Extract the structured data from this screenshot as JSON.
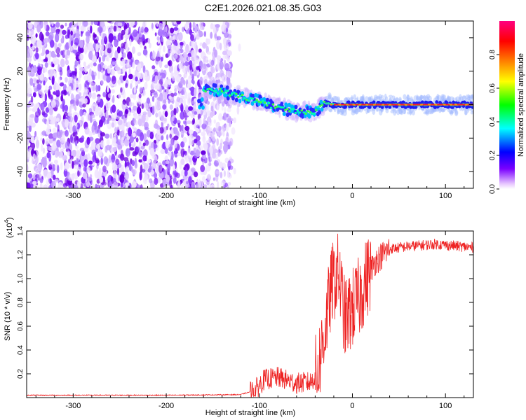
{
  "title": "C2E1.2026.021.08.35.G03",
  "chart_data": [
    {
      "type": "heatmap",
      "name": "spectrogram",
      "xlabel": "Height of straight line (km)",
      "ylabel": "Frequency (Hz)",
      "xlim": [
        -350,
        130
      ],
      "ylim": [
        -50,
        50
      ],
      "xticks": [
        -300,
        -200,
        -100,
        0,
        100
      ],
      "yticks": [
        -40,
        -20,
        0,
        20,
        40
      ],
      "colorbar": {
        "label": "Normalized spectral amplitude",
        "range": [
          0,
          1
        ],
        "ticks": [
          "0.0",
          "0.2",
          "0.4",
          "0.6",
          "0.8"
        ],
        "tick_values": [
          0,
          0.2,
          0.4,
          0.6,
          0.8
        ],
        "colors": [
          "#ffffff",
          "#7a00ff",
          "#0000ff",
          "#00ffff",
          "#00ff00",
          "#ffff00",
          "#ff8000",
          "#ff0000",
          "#ff0080"
        ]
      },
      "regions": [
        {
          "description": "diffuse noise",
          "x_range": [
            -350,
            -130
          ],
          "freq_range": [
            -50,
            50
          ],
          "amplitude": 0.15
        },
        {
          "description": "signal trace",
          "points": [
            [
              -160,
              9
            ],
            [
              -140,
              8
            ],
            [
              -120,
              5
            ],
            [
              -100,
              2
            ],
            [
              -80,
              -2
            ],
            [
              -60,
              -4
            ],
            [
              -40,
              -4
            ],
            [
              -30,
              1
            ],
            [
              -20,
              0
            ],
            [
              0,
              0
            ],
            [
              50,
              0
            ],
            [
              130,
              0
            ]
          ]
        }
      ]
    },
    {
      "type": "line",
      "name": "snr",
      "xlabel": "Height of straight line (km)",
      "ylabel": "SNR (10 * v/v)",
      "scale_label": "(x10",
      "scale_exp": "4",
      "scale_close": ")",
      "xlim": [
        -350,
        130
      ],
      "ylim": [
        0,
        1.4
      ],
      "xticks": [
        -300,
        -200,
        -100,
        0,
        100
      ],
      "yticks": [
        "0.2",
        "0.4",
        "0.6",
        "0.8",
        "1.0",
        "1.2",
        "1.4"
      ],
      "ytick_values": [
        0.2,
        0.4,
        0.6,
        0.8,
        1.0,
        1.2,
        1.4
      ],
      "color": "#ee2222",
      "profile": [
        [
          -350,
          0.02
        ],
        [
          -200,
          0.02
        ],
        [
          -120,
          0.025
        ],
        [
          -105,
          0.06
        ],
        [
          -95,
          0.15
        ],
        [
          -80,
          0.17
        ],
        [
          -60,
          0.12
        ],
        [
          -45,
          0.13
        ],
        [
          -38,
          0.2
        ],
        [
          -30,
          0.55
        ],
        [
          -22,
          0.95
        ],
        [
          -15,
          1.05
        ],
        [
          -8,
          0.65
        ],
        [
          0,
          0.75
        ],
        [
          8,
          0.85
        ],
        [
          15,
          1.0
        ],
        [
          25,
          1.15
        ],
        [
          40,
          1.25
        ],
        [
          60,
          1.27
        ],
        [
          90,
          1.29
        ],
        [
          130,
          1.26
        ]
      ]
    }
  ]
}
